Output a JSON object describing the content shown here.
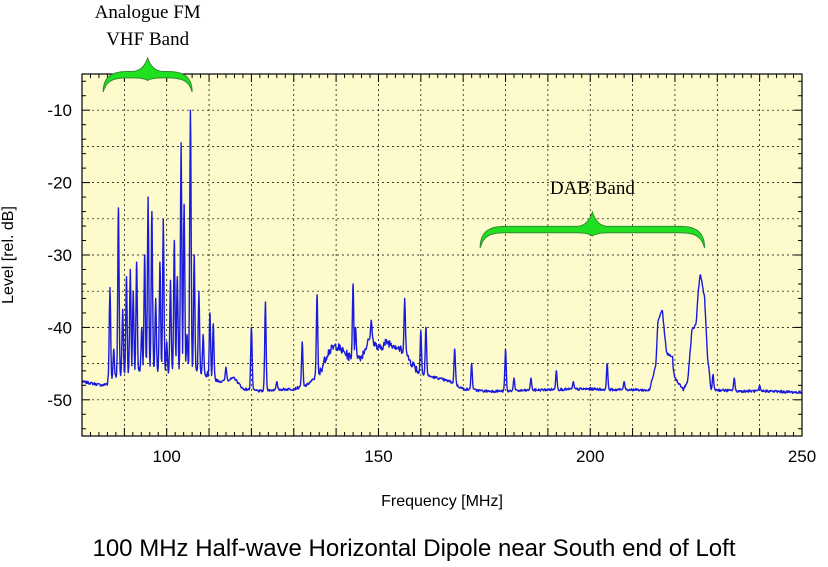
{
  "caption": "100 MHz Half-wave Horizontal Dipole near South end of Loft",
  "colors": {
    "plot_background": "#fdfacc",
    "series": "#1a1adc",
    "brace": "#1fe11f",
    "brace_outline": "#2f8a2f",
    "grid": "#000000"
  },
  "chart_data": {
    "type": "line",
    "xlabel": "Frequency [MHz]",
    "ylabel": "Level [rel. dB]",
    "xlim": [
      80,
      250
    ],
    "ylim": [
      -55,
      -5
    ],
    "xticks": [
      100,
      150,
      200,
      250
    ],
    "yticks": [
      -10,
      -20,
      -30,
      -40,
      -50
    ],
    "grid": true,
    "annotations": [
      {
        "lines": [
          "Analogue FM",
          "VHF Band"
        ],
        "x_range": [
          85,
          106
        ]
      },
      {
        "lines": [
          "DAB Band"
        ],
        "x_range": [
          174,
          227
        ]
      }
    ],
    "series": [
      {
        "baseline": [
          [
            80,
            -47.5
          ],
          [
            85,
            -48
          ],
          [
            88,
            -47
          ],
          [
            92,
            -46.5
          ],
          [
            96,
            -46
          ],
          [
            100,
            -46.5
          ],
          [
            104,
            -46
          ],
          [
            108,
            -46.5
          ],
          [
            110,
            -47
          ],
          [
            113,
            -47.5
          ],
          [
            116,
            -47
          ],
          [
            118,
            -48.5
          ],
          [
            122,
            -48.8
          ],
          [
            126,
            -48.6
          ],
          [
            130,
            -48.5
          ],
          [
            133,
            -48
          ],
          [
            136,
            -46.5
          ],
          [
            138,
            -43.5
          ],
          [
            140,
            -42.5
          ],
          [
            142,
            -43.5
          ],
          [
            144,
            -44.5
          ],
          [
            146,
            -44
          ],
          [
            148,
            -41.5
          ],
          [
            150,
            -43
          ],
          [
            152,
            -42
          ],
          [
            154,
            -42.5
          ],
          [
            156,
            -43.5
          ],
          [
            158,
            -45
          ],
          [
            160,
            -46.5
          ],
          [
            164,
            -47
          ],
          [
            167,
            -47.5
          ],
          [
            170,
            -48.5
          ],
          [
            175,
            -48.8
          ],
          [
            180,
            -48.8
          ],
          [
            190,
            -48.6
          ],
          [
            200,
            -48.5
          ],
          [
            205,
            -48.6
          ],
          [
            210,
            -48.6
          ],
          [
            214,
            -48.7
          ],
          [
            215.5,
            -45
          ],
          [
            216,
            -39
          ],
          [
            217,
            -37.5
          ],
          [
            218,
            -43.5
          ],
          [
            219,
            -44
          ],
          [
            220,
            -47
          ],
          [
            222,
            -48.6
          ],
          [
            223,
            -47.5
          ],
          [
            224,
            -40.5
          ],
          [
            225,
            -39.5
          ],
          [
            225.5,
            -35
          ],
          [
            226,
            -32.5
          ],
          [
            227,
            -36
          ],
          [
            227.7,
            -44
          ],
          [
            228.5,
            -48.6
          ],
          [
            235,
            -48.8
          ],
          [
            242,
            -48.8
          ],
          [
            250,
            -49
          ]
        ],
        "peaks": [
          [
            86.6,
            -34.5
          ],
          [
            87.5,
            -43
          ],
          [
            88.6,
            -23.5
          ],
          [
            89.6,
            -37.5
          ],
          [
            90.5,
            -33
          ],
          [
            91.4,
            -32
          ],
          [
            92.1,
            -35
          ],
          [
            92.9,
            -31
          ],
          [
            94.1,
            -40
          ],
          [
            94.8,
            -30
          ],
          [
            95.6,
            -22
          ],
          [
            96.5,
            -24
          ],
          [
            97.4,
            -36
          ],
          [
            98.4,
            -31
          ],
          [
            99.2,
            -25
          ],
          [
            100,
            -42
          ],
          [
            100.9,
            -33.5
          ],
          [
            101.8,
            -28
          ],
          [
            102.5,
            -33
          ],
          [
            103.4,
            -14.5
          ],
          [
            104.1,
            -23
          ],
          [
            104.8,
            -41
          ],
          [
            105.6,
            -10
          ],
          [
            106.5,
            -30
          ],
          [
            107.6,
            -35
          ],
          [
            108.6,
            -41
          ],
          [
            110.2,
            -38
          ],
          [
            111,
            -39.5
          ],
          [
            114,
            -45.5
          ],
          [
            120,
            -40
          ],
          [
            123.3,
            -36.5
          ],
          [
            126,
            -47.5
          ],
          [
            132,
            -42
          ],
          [
            135.5,
            -35.5
          ],
          [
            144,
            -34
          ],
          [
            144.6,
            -40
          ],
          [
            148.3,
            -39
          ],
          [
            156.2,
            -36
          ],
          [
            160,
            -40.5
          ],
          [
            161.2,
            -40
          ],
          [
            168,
            -43
          ],
          [
            172,
            -45
          ],
          [
            180,
            -43
          ],
          [
            182,
            -47
          ],
          [
            186,
            -47
          ],
          [
            192,
            -46
          ],
          [
            196,
            -47.5
          ],
          [
            204,
            -45
          ],
          [
            208,
            -47.5
          ],
          [
            219,
            -44
          ],
          [
            229,
            -46.5
          ],
          [
            234,
            -47
          ],
          [
            240,
            -48
          ]
        ]
      }
    ]
  }
}
